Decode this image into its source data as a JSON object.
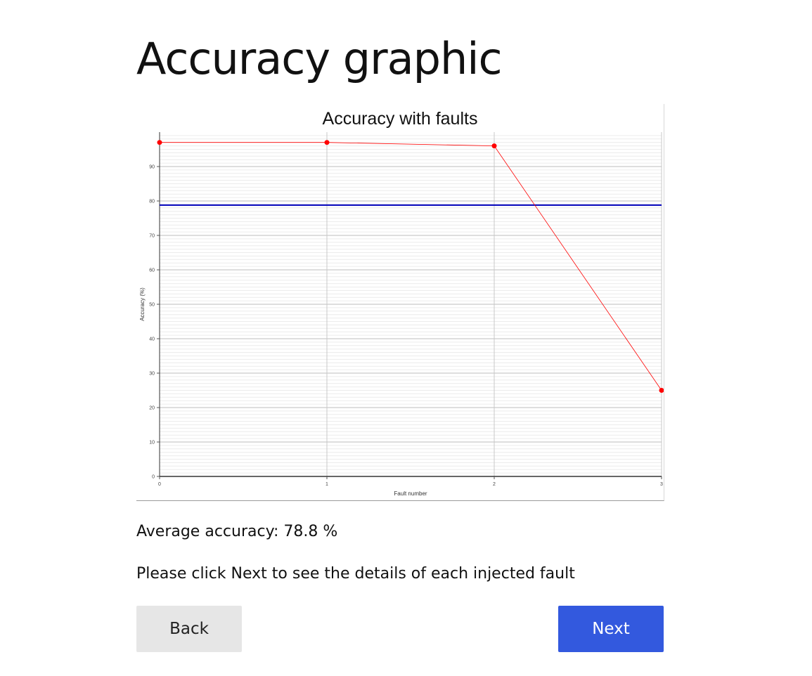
{
  "page": {
    "title": "Accuracy graphic",
    "average_label": "Average accuracy: 78.8 %",
    "instruction": "Please click Next to see the details of each injected fault"
  },
  "buttons": {
    "back_label": "Back",
    "next_label": "Next"
  },
  "colors": {
    "series": "#ff0000",
    "average_line": "#0000bb",
    "next_button": "#3359de",
    "back_button": "#e6e6e6"
  },
  "chart_data": {
    "type": "line",
    "title": "Accuracy with faults",
    "xlabel": "Fault number",
    "ylabel": "Accuracy (%)",
    "x": [
      0,
      1,
      2,
      3
    ],
    "series": [
      {
        "values": [
          97,
          97,
          96,
          25
        ]
      }
    ],
    "reference_line": {
      "y": 78.8
    },
    "xlim": [
      0,
      3
    ],
    "ylim": [
      0,
      100
    ],
    "xticks": [
      "0",
      "1",
      "2",
      "3"
    ],
    "yticks": [
      "0",
      "10",
      "20",
      "30",
      "40",
      "50",
      "60",
      "70",
      "80",
      "90"
    ],
    "grid": true
  }
}
